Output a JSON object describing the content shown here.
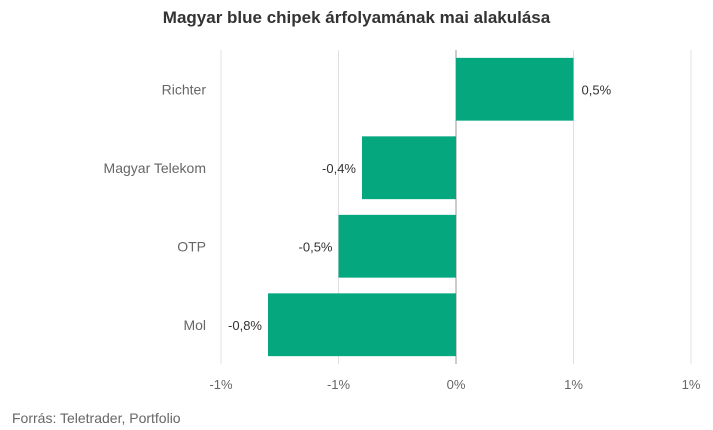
{
  "chart_data": {
    "type": "bar",
    "orientation": "horizontal",
    "title": "Magyar blue chipek árfolyamának mai alakulása",
    "categories": [
      "Richter",
      "Magyar Telekom",
      "OTP",
      "Mol"
    ],
    "values": [
      0.5,
      -0.4,
      -0.5,
      -0.8
    ],
    "value_labels": [
      "0,5%",
      "-0,4%",
      "-0,5%",
      "-0,8%"
    ],
    "xlim": [
      -1.0,
      1.0
    ],
    "x_ticks": [
      -1.0,
      -0.5,
      0,
      0.5,
      1.0
    ],
    "x_tick_labels": [
      "-1%",
      "-1%",
      "0%",
      "1%",
      "1%"
    ],
    "bar_color": "#05a77f",
    "grid": true,
    "legend": "none",
    "source": "Forrás: Teletrader, Portfolio"
  }
}
